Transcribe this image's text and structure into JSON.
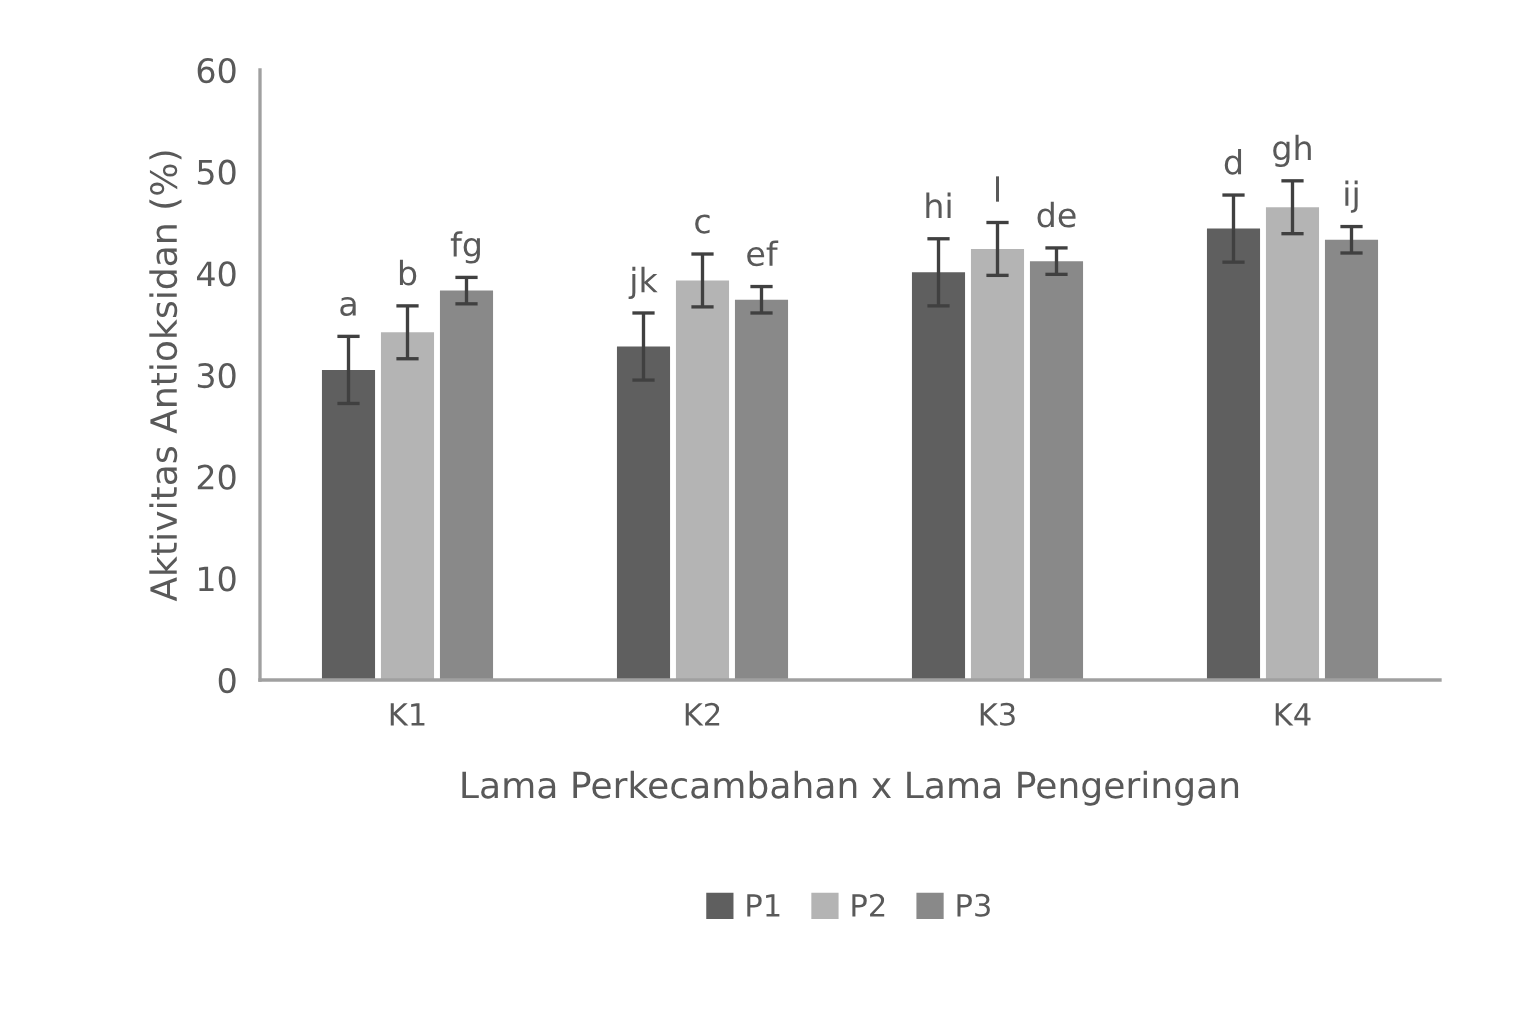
{
  "chart_data": {
    "type": "bar",
    "xlabel": "Lama Perkecambahan x Lama Pengeringan",
    "ylabel": "Aktivitas Antioksidan (%)",
    "categories": [
      "K1",
      "K2",
      "K3",
      "K4"
    ],
    "series": [
      {
        "name": "P1",
        "color": "#5f5f5f",
        "values": [
          30.5,
          32.8,
          40.1,
          44.4
        ],
        "errors": [
          3.3,
          3.3,
          3.3,
          3.3
        ],
        "value_labels": [
          "a",
          "jk",
          "hi",
          "d"
        ]
      },
      {
        "name": "P2",
        "color": "#b4b4b4",
        "values": [
          34.2,
          39.3,
          42.4,
          46.5
        ],
        "errors": [
          2.6,
          2.6,
          2.6,
          2.6
        ],
        "value_labels": [
          "b",
          "c",
          "l",
          "gh"
        ]
      },
      {
        "name": "P3",
        "color": "#898989",
        "values": [
          38.3,
          37.4,
          41.2,
          43.3
        ],
        "errors": [
          1.3,
          1.3,
          1.3,
          1.3
        ],
        "value_labels": [
          "fg",
          "ef",
          "de",
          "ij"
        ]
      }
    ],
    "ylim": [
      0,
      60
    ],
    "yticks": [
      0,
      10,
      20,
      30,
      40,
      50,
      60
    ],
    "grid": false,
    "legend": "bottom"
  }
}
